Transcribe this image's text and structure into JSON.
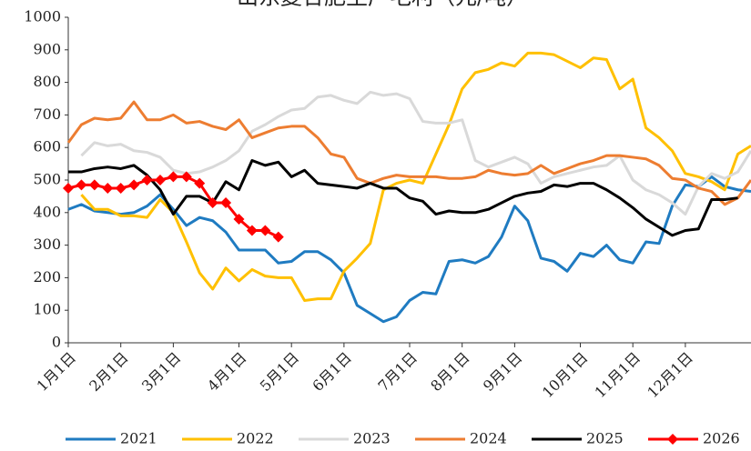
{
  "chart_data": {
    "type": "line",
    "title": "山东复合肥生产毛利（元/吨）",
    "categories": [
      "1月1日",
      null,
      null,
      null,
      "2月1日",
      null,
      null,
      null,
      "3月1日",
      null,
      null,
      null,
      null,
      "4月1日",
      null,
      null,
      null,
      "5月1日",
      null,
      null,
      null,
      "6月1日",
      null,
      null,
      null,
      null,
      "7月1日",
      null,
      null,
      null,
      "8月1日",
      null,
      null,
      null,
      "9月1日",
      null,
      null,
      null,
      null,
      "10月1日",
      null,
      null,
      null,
      "11月1日",
      null,
      null,
      null,
      "12月1日",
      null,
      null,
      null,
      null,
      null
    ],
    "series": [
      {
        "name": "2021",
        "color": "#1f7bc1",
        "values": [
          410,
          425,
          405,
          400,
          395,
          400,
          420,
          455,
          410,
          360,
          385,
          375,
          340,
          285,
          285,
          285,
          245,
          250,
          280,
          280,
          255,
          215,
          115,
          90,
          65,
          80,
          130,
          155,
          150,
          250,
          255,
          245,
          265,
          325,
          420,
          375,
          260,
          250,
          220,
          275,
          265,
          300,
          255,
          245,
          310,
          305,
          420,
          485,
          480,
          510,
          480,
          470,
          465
        ]
      },
      {
        "name": "2022",
        "color": "#ffc000",
        "values": [
          null,
          455,
          410,
          410,
          390,
          390,
          385,
          440,
          400,
          310,
          215,
          165,
          230,
          190,
          225,
          205,
          200,
          200,
          130,
          135,
          135,
          220,
          260,
          305,
          470,
          490,
          500,
          490,
          580,
          670,
          780,
          830,
          840,
          860,
          850,
          890,
          890,
          885,
          865,
          845,
          875,
          870,
          780,
          810,
          660,
          630,
          590,
          520,
          510,
          495,
          470,
          580,
          605
        ]
      },
      {
        "name": "2023",
        "color": "#d9d9d9",
        "values": [
          null,
          575,
          615,
          605,
          610,
          590,
          585,
          570,
          530,
          520,
          525,
          540,
          560,
          590,
          650,
          670,
          695,
          715,
          720,
          755,
          760,
          745,
          735,
          770,
          760,
          765,
          750,
          680,
          675,
          675,
          685,
          560,
          540,
          555,
          570,
          550,
          490,
          510,
          520,
          530,
          540,
          545,
          575,
          500,
          470,
          455,
          430,
          395,
          480,
          520,
          505,
          525,
          590
        ]
      },
      {
        "name": "2024",
        "color": "#ed7d31",
        "values": [
          615,
          670,
          690,
          685,
          690,
          740,
          685,
          685,
          700,
          675,
          680,
          665,
          655,
          685,
          630,
          645,
          660,
          665,
          665,
          630,
          580,
          570,
          505,
          490,
          505,
          515,
          510,
          510,
          510,
          505,
          505,
          510,
          530,
          520,
          515,
          520,
          545,
          520,
          535,
          550,
          560,
          575,
          575,
          570,
          565,
          545,
          505,
          500,
          475,
          465,
          425,
          445,
          500
        ]
      },
      {
        "name": "2025",
        "color": "#000000",
        "values": [
          525,
          525,
          535,
          540,
          535,
          545,
          515,
          470,
          395,
          450,
          450,
          430,
          495,
          470,
          560,
          545,
          555,
          510,
          530,
          490,
          485,
          480,
          475,
          490,
          475,
          475,
          445,
          435,
          395,
          405,
          400,
          400,
          410,
          430,
          450,
          460,
          465,
          485,
          480,
          490,
          490,
          470,
          445,
          415,
          380,
          355,
          330,
          345,
          350,
          440,
          440,
          445,
          null
        ]
      },
      {
        "name": "2026",
        "color": "#ff0000",
        "marker": "diamond",
        "values": [
          475,
          485,
          485,
          475,
          475,
          485,
          500,
          500,
          510,
          510,
          490,
          430,
          430,
          380,
          345,
          345,
          325,
          null,
          null,
          null,
          null,
          null,
          null,
          null,
          null,
          null,
          null,
          null,
          null,
          null,
          null,
          null,
          null,
          null,
          null,
          null,
          null,
          null,
          null,
          null,
          null,
          null,
          null,
          null,
          null,
          null,
          null,
          null,
          null,
          null,
          null,
          null,
          null
        ]
      }
    ],
    "ylim": [
      0,
      1000
    ],
    "yticks": [
      0,
      100,
      200,
      300,
      400,
      500,
      600,
      700,
      800,
      900,
      1000
    ],
    "grid": false,
    "legend": "bottom"
  }
}
